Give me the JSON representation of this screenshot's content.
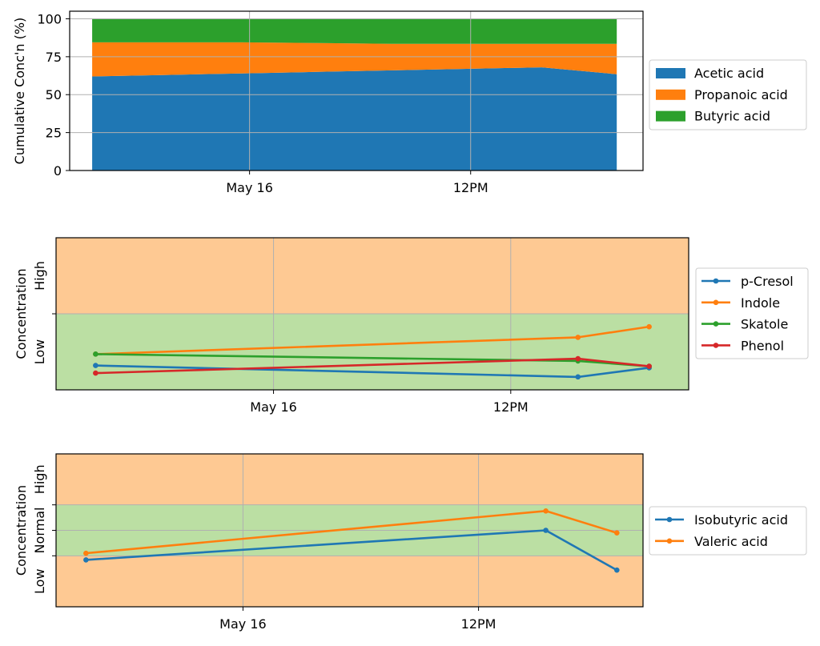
{
  "chart_data": [
    {
      "type": "area",
      "stacked": true,
      "x": [
        0,
        1,
        2,
        3,
        4,
        5,
        6,
        7
      ],
      "series": [
        {
          "name": "Acetic acid",
          "color": "#1f77b4",
          "values": [
            62,
            63,
            64,
            65,
            66,
            67,
            68,
            63.5
          ]
        },
        {
          "name": "Propanoic acid",
          "color": "#ff7f0e",
          "values": [
            22.5,
            21.5,
            20.5,
            19,
            17.5,
            16.5,
            15.5,
            20
          ]
        },
        {
          "name": "Butyric acid",
          "color": "#2ca02c",
          "values": [
            15.5,
            15.5,
            15.5,
            16,
            16.5,
            16.5,
            16.5,
            16.5
          ]
        }
      ],
      "xlim": [
        -0.3,
        7.35
      ],
      "xtick_positions": [
        2.1,
        5.05
      ],
      "xtick_labels": [
        "May 16",
        "12PM"
      ],
      "ylim": [
        0,
        105
      ],
      "yticks": [
        0,
        25,
        50,
        75,
        100
      ],
      "ylabel": "Cumulative Conc'n (%)",
      "grid": true,
      "legend_position": "right"
    },
    {
      "type": "line",
      "zones": [
        {
          "label": "Low",
          "from": 0,
          "to": 1,
          "color": "#bbdfa3"
        },
        {
          "label": "High",
          "from": 1,
          "to": 2,
          "color": "#fec993"
        }
      ],
      "ylim": [
        0,
        2
      ],
      "ytick_positions": [
        1
      ],
      "ylabel": "Concentration",
      "xlim": [
        -0.5,
        7.5
      ],
      "xtick_positions": [
        2.25,
        5.25
      ],
      "xtick_labels": [
        "May 16",
        "12PM"
      ],
      "grid": true,
      "legend_position": "right",
      "series": [
        {
          "name": "p-Cresol",
          "color": "#1f77b4",
          "x": [
            0,
            6.1,
            7
          ],
          "values": [
            0.32,
            0.17,
            0.29
          ]
        },
        {
          "name": "Indole",
          "color": "#ff7f0e",
          "x": [
            0,
            6.1,
            7
          ],
          "values": [
            0.47,
            0.69,
            0.83
          ]
        },
        {
          "name": "Skatole",
          "color": "#2ca02c",
          "x": [
            0,
            6.1,
            7
          ],
          "values": [
            0.47,
            0.38,
            0.31
          ]
        },
        {
          "name": "Phenol",
          "color": "#d62728",
          "x": [
            0,
            6.1,
            7
          ],
          "values": [
            0.22,
            0.41,
            0.31
          ]
        }
      ]
    },
    {
      "type": "line",
      "zones": [
        {
          "label": "Low",
          "from": 0,
          "to": 1,
          "color": "#fec993"
        },
        {
          "label": "Normal",
          "from": 1,
          "to": 2,
          "color": "#bbdfa3"
        },
        {
          "label": "High",
          "from": 2,
          "to": 3,
          "color": "#fec993"
        }
      ],
      "ylim": [
        0,
        3
      ],
      "ytick_positions": [
        1,
        1.5,
        2
      ],
      "ylabel": "Concentration",
      "xlim": [
        -0.4,
        7.45
      ],
      "xtick_positions": [
        2.1,
        5.25
      ],
      "xtick_labels": [
        "May 16",
        "12PM"
      ],
      "grid": true,
      "legend_position": "right",
      "series": [
        {
          "name": "Isobutyric acid",
          "color": "#1f77b4",
          "x": [
            0,
            6.15,
            7.1
          ],
          "values": [
            0.92,
            1.5,
            0.72
          ]
        },
        {
          "name": "Valeric acid",
          "color": "#ff7f0e",
          "x": [
            0,
            6.15,
            7.1
          ],
          "values": [
            1.05,
            1.88,
            1.45
          ]
        }
      ]
    }
  ]
}
